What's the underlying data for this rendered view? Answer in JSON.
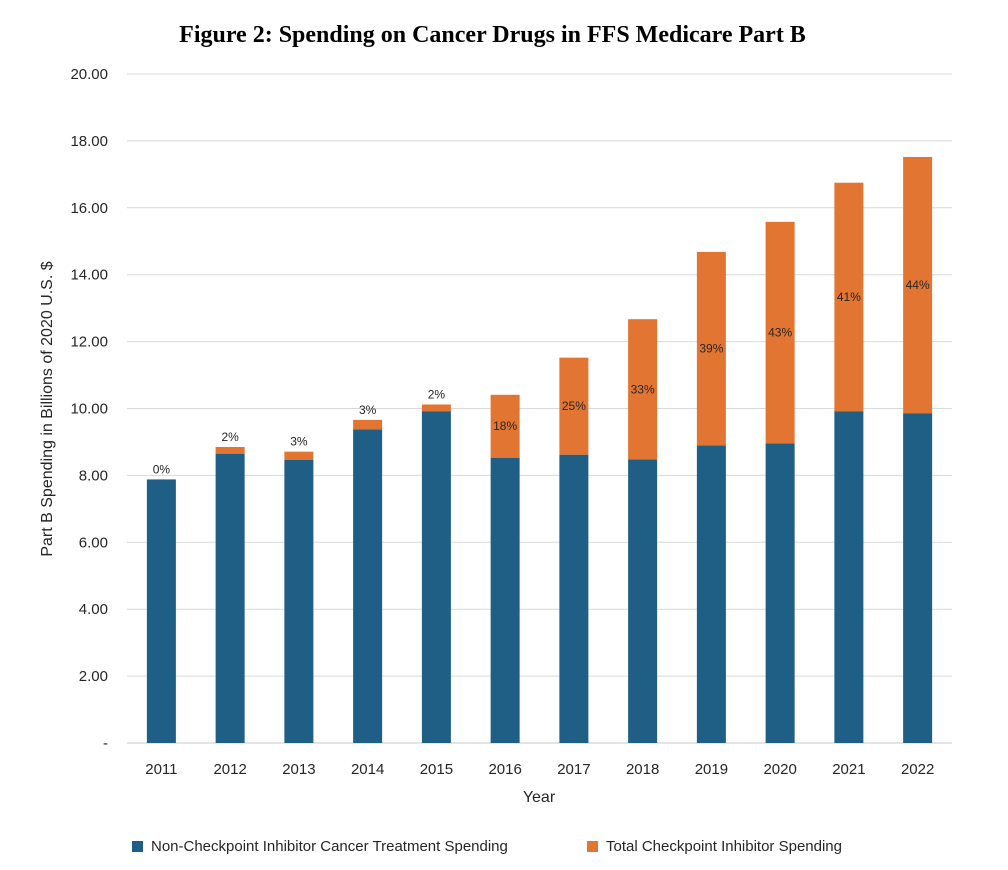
{
  "chart_data": {
    "type": "bar",
    "stacked": true,
    "title": "Figure 2: Spending on Cancer Drugs in FFS Medicare Part B",
    "xlabel": "Year",
    "ylabel": "Part B Spending in Billions of 2020 U.S. $",
    "ylim": [
      0,
      20
    ],
    "yticks": [
      "-",
      "2.00",
      "4.00",
      "6.00",
      "8.00",
      "10.00",
      "12.00",
      "14.00",
      "16.00",
      "18.00",
      "20.00"
    ],
    "grid": true,
    "legend_position": "bottom",
    "categories": [
      "2011",
      "2012",
      "2013",
      "2014",
      "2015",
      "2016",
      "2017",
      "2018",
      "2019",
      "2020",
      "2021",
      "2022"
    ],
    "series": [
      {
        "name": "Non-Checkpoint Inhibitor Cancer Treatment Spending",
        "color": "#1f5f85",
        "values": [
          7.88,
          8.65,
          8.47,
          9.38,
          9.92,
          8.53,
          8.62,
          8.48,
          8.9,
          8.96,
          9.92,
          9.86
        ]
      },
      {
        "name": "Total Checkpoint Inhibitor Spending",
        "color": "#e37532",
        "values": [
          0.0,
          0.2,
          0.24,
          0.28,
          0.2,
          1.88,
          2.9,
          4.19,
          5.78,
          6.62,
          6.83,
          7.66
        ]
      }
    ],
    "data_labels": [
      "0%",
      "2%",
      "3%",
      "3%",
      "2%",
      "18%",
      "25%",
      "33%",
      "39%",
      "43%",
      "41%",
      "44%"
    ]
  }
}
